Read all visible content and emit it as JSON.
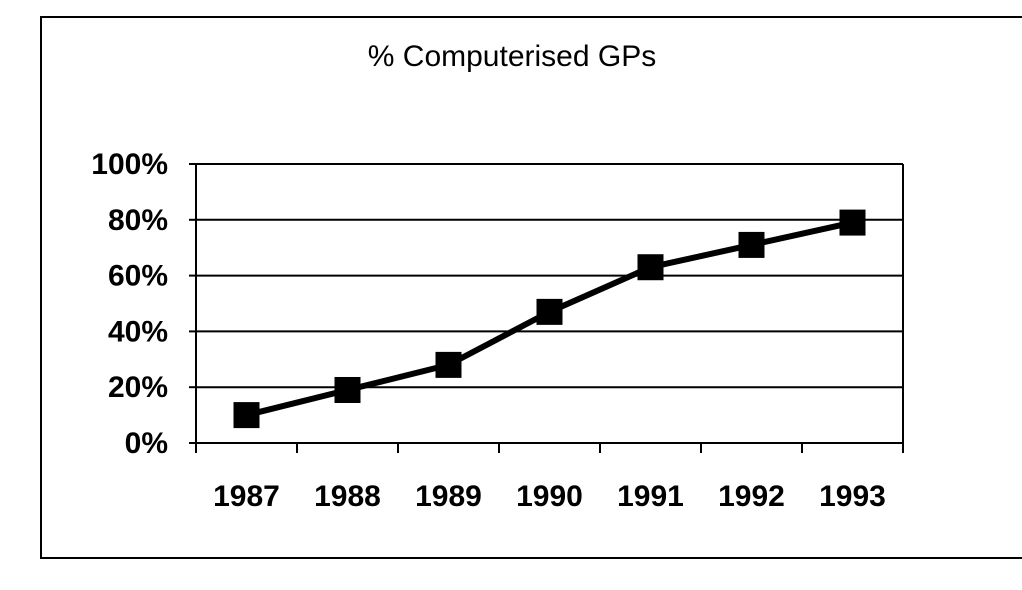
{
  "chart_data": {
    "type": "line",
    "title": "% Computerised GPs",
    "xlabel": "",
    "ylabel": "",
    "categories": [
      "1987",
      "1988",
      "1989",
      "1990",
      "1991",
      "1992",
      "1993"
    ],
    "series": [
      {
        "values": [
          10,
          19,
          28,
          47,
          63,
          71,
          79
        ]
      }
    ],
    "y_tick_labels": [
      "0%",
      "20%",
      "40%",
      "60%",
      "80%",
      "100%"
    ],
    "ylim": [
      0,
      100
    ],
    "y_ticks": [
      0,
      20,
      40,
      60,
      80,
      100
    ],
    "grid": true,
    "legend": "none",
    "marker": "square",
    "line_color": "#000000"
  }
}
